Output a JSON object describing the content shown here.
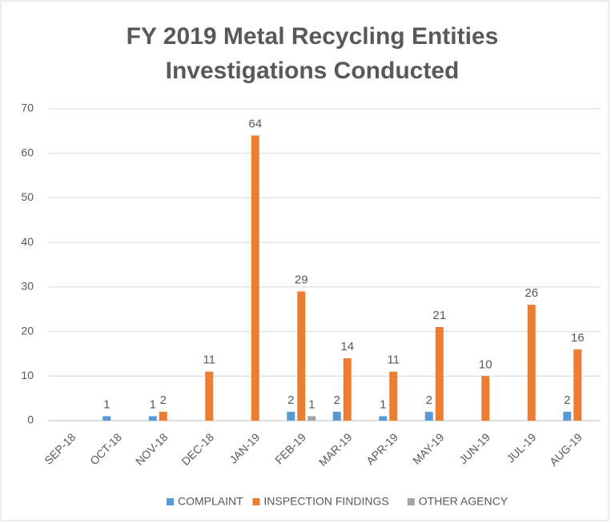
{
  "chart_data": {
    "type": "bar",
    "title": [
      "FY 2019 Metal Recycling Entities",
      "Investigations Conducted"
    ],
    "categories": [
      "SEP-18",
      "OCT-18",
      "NOV-18",
      "DEC-18",
      "JAN-19",
      "FEB-19",
      "MAR-19",
      "APR-19",
      "MAY-19",
      "JUN-19",
      "JUL-19",
      "AUG-19"
    ],
    "series": [
      {
        "name": "COMPLAINT",
        "color": "#5b9bd5",
        "values": [
          null,
          1,
          1,
          null,
          null,
          2,
          2,
          1,
          2,
          null,
          null,
          2
        ]
      },
      {
        "name": "INSPECTION FINDINGS",
        "color": "#ed7d31",
        "values": [
          null,
          null,
          2,
          11,
          64,
          29,
          14,
          11,
          21,
          10,
          26,
          16
        ]
      },
      {
        "name": "OTHER AGENCY",
        "color": "#a5a5a5",
        "values": [
          null,
          null,
          null,
          null,
          null,
          1,
          null,
          null,
          null,
          null,
          null,
          null
        ]
      }
    ],
    "ylim": [
      0,
      70
    ],
    "yticks": [
      0,
      10,
      20,
      30,
      40,
      50,
      60,
      70
    ],
    "grid": true,
    "legend": "bottom"
  }
}
